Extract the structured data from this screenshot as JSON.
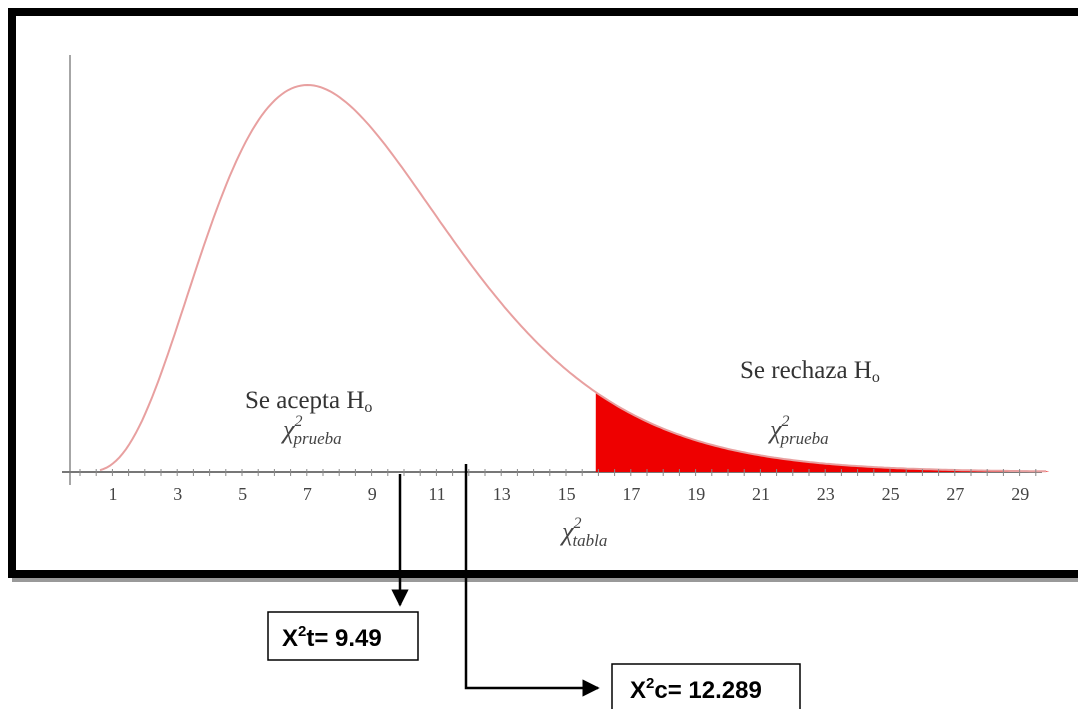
{
  "axis_ticks": [
    1,
    3,
    5,
    7,
    9,
    11,
    13,
    15,
    17,
    19,
    21,
    23,
    25,
    27,
    29
  ],
  "accept_region": {
    "label": {
      "text": "Se acepta H",
      "sub": "o"
    },
    "statistic": {
      "base": "χ",
      "sup": "2",
      "sub": "prueba"
    }
  },
  "reject_region": {
    "label": {
      "text": "Se rechaza H",
      "sub": "o"
    },
    "statistic": {
      "base": "χ",
      "sup": "2",
      "sub": "prueba"
    }
  },
  "critical_label": {
    "base": "χ",
    "sup": "2",
    "sub": "tabla"
  },
  "callouts": [
    {
      "base": "X",
      "sup": "2",
      "rest": "t= 9.49"
    },
    {
      "base": "X",
      "sup": "2",
      "rest": "c= 12.289"
    }
  ]
}
